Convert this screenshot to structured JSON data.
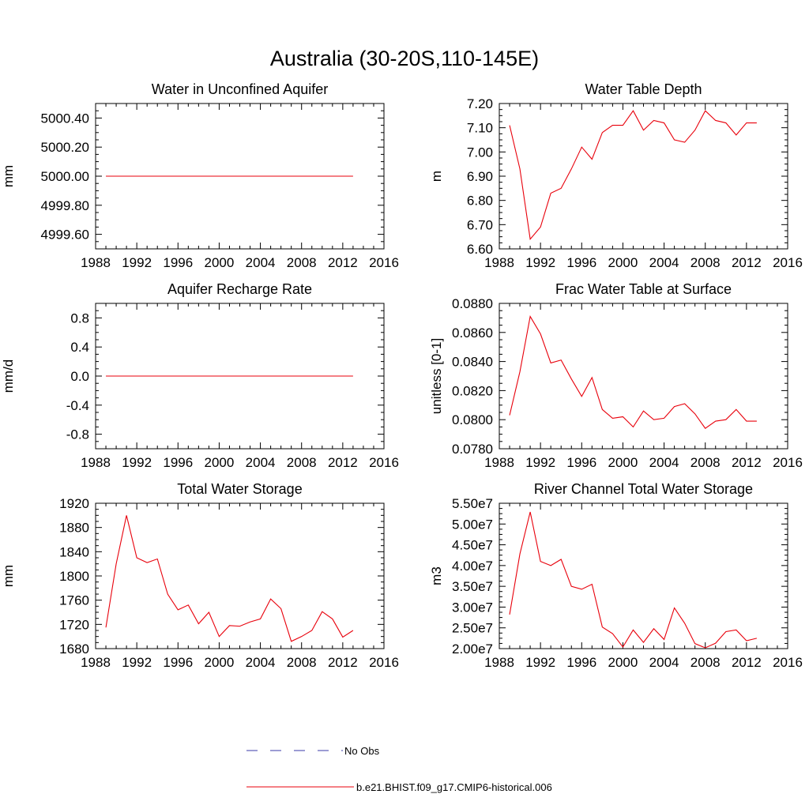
{
  "figure": {
    "title": "Australia (30-20S,110-145E)"
  },
  "legend": {
    "entries": [
      {
        "label": "No Obs",
        "color": "#3a3aa8",
        "style": "dashed"
      },
      {
        "label": "b.e21.BHIST.f09_g17.CMIP6-historical.006",
        "color": "#e8000b",
        "style": "solid"
      }
    ]
  },
  "chart_data": [
    {
      "type": "line",
      "title": "Water in Unconfined Aquifer",
      "ylabel": "mm",
      "xlim": [
        1988,
        2016
      ],
      "ylim": [
        4999.5,
        5000.5
      ],
      "xticks": [
        1988,
        1992,
        1996,
        2000,
        2004,
        2008,
        2012,
        2016
      ],
      "yticks": [
        4999.6,
        4999.8,
        5000.0,
        5000.2,
        5000.4
      ],
      "ytick_labels": [
        "4999.60",
        "4999.80",
        "5000.00",
        "5000.20",
        "5000.40"
      ],
      "x": [
        1989,
        1990,
        1991,
        1992,
        1993,
        1994,
        1995,
        1996,
        1997,
        1998,
        1999,
        2000,
        2001,
        2002,
        2003,
        2004,
        2005,
        2006,
        2007,
        2008,
        2009,
        2010,
        2011,
        2012,
        2013
      ],
      "series": [
        {
          "color": "#e8000b",
          "values": [
            5000,
            5000,
            5000,
            5000,
            5000,
            5000,
            5000,
            5000,
            5000,
            5000,
            5000,
            5000,
            5000,
            5000,
            5000,
            5000,
            5000,
            5000,
            5000,
            5000,
            5000,
            5000,
            5000,
            5000,
            5000
          ]
        }
      ]
    },
    {
      "type": "line",
      "title": "Water Table Depth",
      "ylabel": "m",
      "xlim": [
        1988,
        2016
      ],
      "ylim": [
        6.6,
        7.2
      ],
      "xticks": [
        1988,
        1992,
        1996,
        2000,
        2004,
        2008,
        2012,
        2016
      ],
      "yticks": [
        6.6,
        6.7,
        6.8,
        6.9,
        7.0,
        7.1,
        7.2
      ],
      "ytick_labels": [
        "6.60",
        "6.70",
        "6.80",
        "6.90",
        "7.00",
        "7.10",
        "7.20"
      ],
      "x": [
        1989,
        1990,
        1991,
        1992,
        1993,
        1994,
        1995,
        1996,
        1997,
        1998,
        1999,
        2000,
        2001,
        2002,
        2003,
        2004,
        2005,
        2006,
        2007,
        2008,
        2009,
        2010,
        2011,
        2012,
        2013
      ],
      "series": [
        {
          "color": "#e8000b",
          "values": [
            7.11,
            6.93,
            6.64,
            6.69,
            6.83,
            6.85,
            6.93,
            7.02,
            6.97,
            7.08,
            7.11,
            7.11,
            7.17,
            7.09,
            7.13,
            7.12,
            7.05,
            7.04,
            7.09,
            7.17,
            7.13,
            7.12,
            7.07,
            7.12,
            7.12
          ]
        }
      ]
    },
    {
      "type": "line",
      "title": "Aquifer Recharge Rate",
      "ylabel": "mm/d",
      "xlim": [
        1988,
        2016
      ],
      "ylim": [
        -1.0,
        1.0
      ],
      "xticks": [
        1988,
        1992,
        1996,
        2000,
        2004,
        2008,
        2012,
        2016
      ],
      "yticks": [
        -0.8,
        -0.4,
        0.0,
        0.4,
        0.8
      ],
      "ytick_labels": [
        "-0.8",
        "-0.4",
        "0.0",
        "0.4",
        "0.8"
      ],
      "x": [
        1989,
        1990,
        1991,
        1992,
        1993,
        1994,
        1995,
        1996,
        1997,
        1998,
        1999,
        2000,
        2001,
        2002,
        2003,
        2004,
        2005,
        2006,
        2007,
        2008,
        2009,
        2010,
        2011,
        2012,
        2013
      ],
      "series": [
        {
          "color": "#e8000b",
          "values": [
            0,
            0,
            0,
            0,
            0,
            0,
            0,
            0,
            0,
            0,
            0,
            0,
            0,
            0,
            0,
            0,
            0,
            0,
            0,
            0,
            0,
            0,
            0,
            0,
            0
          ]
        }
      ]
    },
    {
      "type": "line",
      "title": "Frac Water Table at Surface",
      "ylabel": "unitless [0-1]",
      "xlim": [
        1988,
        2016
      ],
      "ylim": [
        0.078,
        0.088
      ],
      "xticks": [
        1988,
        1992,
        1996,
        2000,
        2004,
        2008,
        2012,
        2016
      ],
      "yticks": [
        0.078,
        0.08,
        0.082,
        0.084,
        0.086,
        0.088
      ],
      "ytick_labels": [
        "0.0780",
        "0.0800",
        "0.0820",
        "0.0840",
        "0.0860",
        "0.0880"
      ],
      "x": [
        1989,
        1990,
        1991,
        1992,
        1993,
        1994,
        1995,
        1996,
        1997,
        1998,
        1999,
        2000,
        2001,
        2002,
        2003,
        2004,
        2005,
        2006,
        2007,
        2008,
        2009,
        2010,
        2011,
        2012,
        2013
      ],
      "series": [
        {
          "color": "#e8000b",
          "values": [
            0.0803,
            0.0833,
            0.0871,
            0.0859,
            0.0839,
            0.0841,
            0.0828,
            0.0816,
            0.0829,
            0.0807,
            0.0801,
            0.0802,
            0.0795,
            0.0806,
            0.08,
            0.0801,
            0.0809,
            0.0811,
            0.0804,
            0.0794,
            0.0799,
            0.08,
            0.0807,
            0.0799,
            0.0799
          ]
        }
      ]
    },
    {
      "type": "line",
      "title": "Total Water Storage",
      "ylabel": "mm",
      "xlim": [
        1988,
        2016
      ],
      "ylim": [
        1680,
        1920
      ],
      "xticks": [
        1988,
        1992,
        1996,
        2000,
        2004,
        2008,
        2012,
        2016
      ],
      "yticks": [
        1680,
        1720,
        1760,
        1800,
        1840,
        1880,
        1920
      ],
      "ytick_labels": [
        "1680",
        "1720",
        "1760",
        "1800",
        "1840",
        "1880",
        "1920"
      ],
      "x": [
        1989,
        1990,
        1991,
        1992,
        1993,
        1994,
        1995,
        1996,
        1997,
        1998,
        1999,
        2000,
        2001,
        2002,
        2003,
        2004,
        2005,
        2006,
        2007,
        2008,
        2009,
        2010,
        2011,
        2012,
        2013
      ],
      "series": [
        {
          "color": "#e8000b",
          "values": [
            1715,
            1820,
            1900,
            1830,
            1822,
            1828,
            1770,
            1744,
            1752,
            1721,
            1740,
            1700,
            1718,
            1717,
            1724,
            1729,
            1762,
            1746,
            1692,
            1700,
            1710,
            1741,
            1729,
            1699,
            1710
          ]
        }
      ]
    },
    {
      "type": "line",
      "title": "River Channel Total Water Storage",
      "ylabel": "m3",
      "xlim": [
        1988,
        2016
      ],
      "ylim": [
        20000000,
        55000000
      ],
      "xticks": [
        1988,
        1992,
        1996,
        2000,
        2004,
        2008,
        2012,
        2016
      ],
      "yticks": [
        20000000,
        25000000,
        30000000,
        35000000,
        40000000,
        45000000,
        50000000,
        55000000
      ],
      "ytick_labels": [
        "2.00e7",
        "2.50e7",
        "3.00e7",
        "3.50e7",
        "4.00e7",
        "4.50e7",
        "5.00e7",
        "5.50e7"
      ],
      "x": [
        1989,
        1990,
        1991,
        1992,
        1993,
        1994,
        1995,
        1996,
        1997,
        1998,
        1999,
        2000,
        2001,
        2002,
        2003,
        2004,
        2005,
        2006,
        2007,
        2008,
        2009,
        2010,
        2011,
        2012,
        2013
      ],
      "series": [
        {
          "color": "#e8000b",
          "values": [
            28200000,
            42800000,
            52900000,
            41000000,
            40000000,
            41500000,
            35000000,
            34300000,
            35500000,
            25200000,
            23600000,
            20400000,
            24500000,
            21500000,
            24800000,
            22200000,
            29800000,
            26100000,
            21200000,
            20200000,
            21300000,
            24100000,
            24500000,
            21900000,
            22500000
          ]
        }
      ]
    }
  ]
}
